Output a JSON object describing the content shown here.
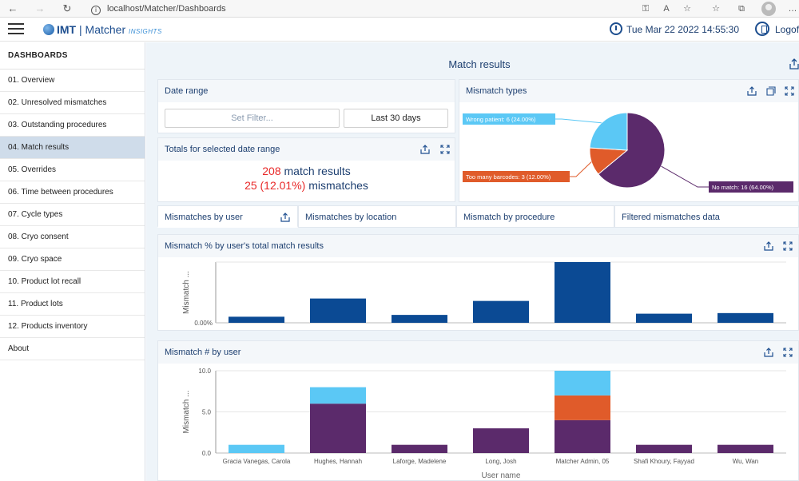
{
  "browser": {
    "url": "localhost/Matcher/Dashboards"
  },
  "header": {
    "logo_brand": "IMT",
    "logo_product": "Matcher",
    "logo_suffix": "INSIGHTS",
    "datetime": "Tue Mar 22 2022 14:55:30",
    "logoff_label": "Logoff"
  },
  "sidebar": {
    "title": "DASHBOARDS",
    "items": [
      "01. Overview",
      "02. Unresolved mismatches",
      "03. Outstanding procedures",
      "04. Match results",
      "05. Overrides",
      "06. Time between procedures",
      "07. Cycle types",
      "08. Cryo consent",
      "09. Cryo space",
      "10. Product lot recall",
      "11. Product lots",
      "12. Products inventory",
      "About"
    ]
  },
  "main": {
    "title": "Match results",
    "date_range": {
      "title": "Date range",
      "filter_placeholder": "Set Filter...",
      "preset_label": "Last 30 days"
    },
    "totals": {
      "title": "Totals for selected date range",
      "match_count": "208",
      "match_label": "match results",
      "mismatch_count": "25 (12.01%)",
      "mismatch_label": "mismatches"
    },
    "mismatch_types": {
      "title": "Mismatch types"
    },
    "tabs": [
      "Mismatches by user",
      "Mismatches by location",
      "Mismatch by procedure",
      "Filtered mismatches data"
    ],
    "chart1_panel_title": "Mismatch % by user's total match results",
    "chart2_panel_title": "Mismatch # by user"
  },
  "chart_data": [
    {
      "type": "pie",
      "title": "Mismatch types",
      "slices": [
        {
          "label": "No match: 16 (64.00%)",
          "value": 16,
          "color": "#5b2a6b"
        },
        {
          "label": "Too many barcodes: 3 (12.00%)",
          "value": 3,
          "color": "#e05b2a"
        },
        {
          "label": "Wrong patient: 6 (24.00%)",
          "value": 6,
          "color": "#5bc8f5"
        }
      ]
    },
    {
      "type": "bar",
      "title": "Mismatch % by user's total match results",
      "ylabel": "Mismatch ...",
      "ytick": "0.00%",
      "ylim": [
        0,
        100
      ],
      "categories": [
        "Gracia Vanegas, Carola",
        "Hughes, Hannah",
        "Laforge, Madelene",
        "Long, Josh",
        "Matcher Admin, 05",
        "Shafi Khoury, Fayyad",
        "Wu, Wan"
      ],
      "values": [
        10,
        40,
        13,
        36,
        100,
        15,
        16
      ],
      "color": "#0b4a94"
    },
    {
      "type": "bar",
      "stacked": true,
      "title": "Mismatch # by user",
      "xlabel": "User name",
      "ylabel": "Mismatch ...",
      "yticks": [
        "0.0",
        "5.0",
        "10.0"
      ],
      "ylim": [
        0,
        10
      ],
      "categories": [
        "Gracia Vanegas, Carola",
        "Hughes, Hannah",
        "Laforge, Madelene",
        "Long, Josh",
        "Matcher Admin, 05",
        "Shafi Khoury, Fayyad",
        "Wu, Wan"
      ],
      "series": [
        {
          "name": "No match",
          "color": "#5b2a6b",
          "values": [
            0,
            6,
            1,
            3,
            4,
            1,
            1
          ]
        },
        {
          "name": "Too many barcodes",
          "color": "#e05b2a",
          "values": [
            0,
            0,
            0,
            0,
            3,
            0,
            0
          ]
        },
        {
          "name": "Wrong patient",
          "color": "#5bc8f5",
          "values": [
            1,
            2,
            0,
            0,
            3,
            0,
            0
          ]
        }
      ]
    }
  ]
}
